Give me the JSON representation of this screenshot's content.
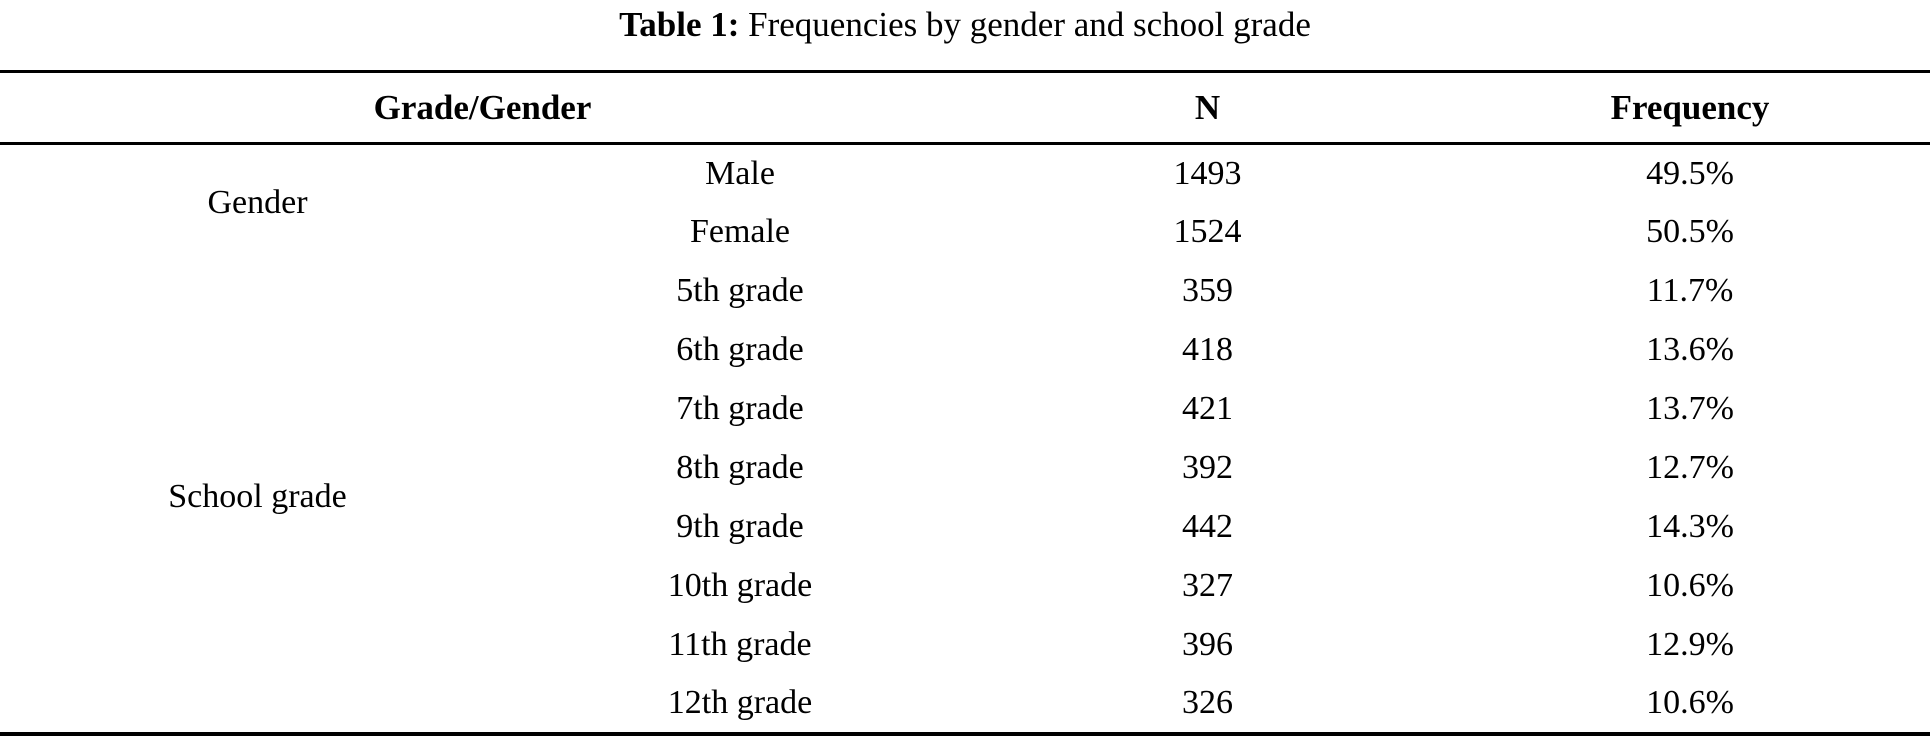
{
  "page": {
    "background": "#ffffff",
    "text_color": "#000000",
    "rule_color": "#000000"
  },
  "title": {
    "label": "Table 1:",
    "text": " Frequencies by gender and school grade"
  },
  "table": {
    "header": {
      "grade_gender": "Grade/Gender",
      "n": "N",
      "frequency": "Frequency"
    },
    "groups": [
      {
        "label": "Gender",
        "rows": [
          {
            "category": "Male",
            "n": "1493",
            "frequency": "49.5%"
          },
          {
            "category": "Female",
            "n": "1524",
            "frequency": "50.5%"
          }
        ]
      },
      {
        "label": "School grade",
        "rows": [
          {
            "category": "5th grade",
            "n": "359",
            "frequency": "11.7%"
          },
          {
            "category": "6th grade",
            "n": "418",
            "frequency": "13.6%"
          },
          {
            "category": "7th grade",
            "n": "421",
            "frequency": "13.7%"
          },
          {
            "category": "8th grade",
            "n": "392",
            "frequency": "12.7%"
          },
          {
            "category": "9th grade",
            "n": "442",
            "frequency": "14.3%"
          },
          {
            "category": "10th grade",
            "n": "327",
            "frequency": "10.6%"
          },
          {
            "category": "11th grade",
            "n": "396",
            "frequency": "12.9%"
          },
          {
            "category": "12th grade",
            "n": "326",
            "frequency": "10.6%"
          }
        ]
      }
    ]
  }
}
